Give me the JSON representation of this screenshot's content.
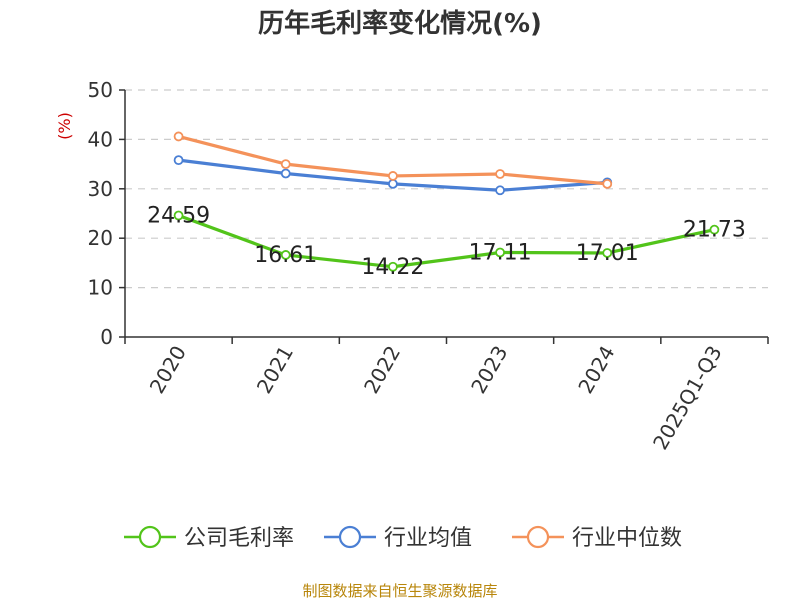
{
  "chart_data": {
    "type": "line",
    "title": "历年毛利率变化情况(%)",
    "ylabel": "(%)",
    "xlabel": "",
    "ylim": [
      0,
      50
    ],
    "yticks": [
      0,
      10,
      20,
      30,
      40,
      50
    ],
    "grid": true,
    "legend_position": "bottom",
    "categories": [
      "2020",
      "2021",
      "2022",
      "2023",
      "2024",
      "2025Q1-Q3"
    ],
    "series": [
      {
        "name": "公司毛利率",
        "color": "#52c41a",
        "values": [
          24.59,
          16.61,
          14.22,
          17.11,
          17.01,
          21.73
        ],
        "labels": [
          "24.59",
          "16.61",
          "14.22",
          "17.11",
          "17.01",
          "21.73"
        ]
      },
      {
        "name": "行业均值",
        "color": "#4a7fd4",
        "values": [
          35.8,
          33.1,
          31.0,
          29.7,
          31.3,
          null
        ]
      },
      {
        "name": "行业中位数",
        "color": "#f4925a",
        "values": [
          40.6,
          35.0,
          32.6,
          33.0,
          31.0,
          null
        ]
      }
    ]
  },
  "source": "制图数据来自恒生聚源数据库"
}
